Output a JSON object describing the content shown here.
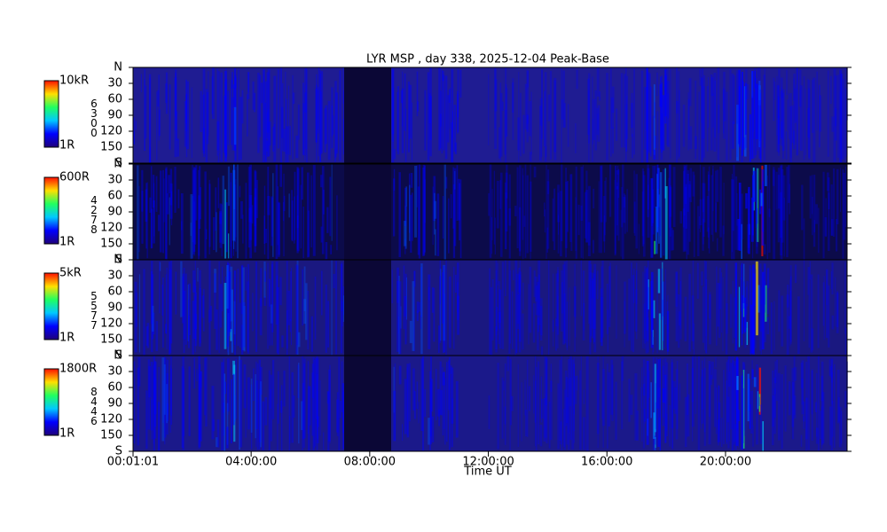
{
  "chart_data": {
    "type": "keogram",
    "title": "LYR MSP , day 338, 2025-12-04 Peak-Base",
    "x_label": "Time UT",
    "xlim": [
      0.0169,
      24.1
    ],
    "xticks": [
      {
        "value": 0.0169,
        "label": "00:01:01"
      },
      {
        "value": 4,
        "label": "04:00:00"
      },
      {
        "value": 8,
        "label": "08:00:00"
      },
      {
        "value": 12,
        "label": "12:00:00"
      },
      {
        "value": 16,
        "label": "16:00:00"
      },
      {
        "value": 20,
        "label": "20:00:00"
      }
    ],
    "ylim": [
      0,
      180
    ],
    "panels": [
      {
        "wavelength": "6300",
        "scale_max": "10kR",
        "scale_min": "1R",
        "yticks": [
          {
            "value": 0,
            "label": "N"
          },
          30,
          60,
          90,
          120,
          150,
          {
            "value": 180,
            "label": "S"
          }
        ]
      },
      {
        "wavelength": "4278",
        "scale_max": "600R",
        "scale_min": "1R",
        "yticks": [
          {
            "value": 0,
            "label": "N"
          },
          30,
          60,
          90,
          120,
          150,
          {
            "value": 180,
            "label": "S"
          }
        ]
      },
      {
        "wavelength": "5577",
        "scale_max": "5kR",
        "scale_min": "1R",
        "yticks": [
          {
            "value": 0,
            "label": "N"
          },
          30,
          60,
          90,
          120,
          150,
          {
            "value": 180,
            "label": "S"
          }
        ]
      },
      {
        "wavelength": "8446",
        "scale_max": "1800R",
        "scale_min": "1R",
        "yticks": [
          {
            "value": 0,
            "label": "N"
          },
          30,
          60,
          90,
          120,
          150,
          {
            "value": 180,
            "label": "S"
          }
        ]
      }
    ]
  }
}
